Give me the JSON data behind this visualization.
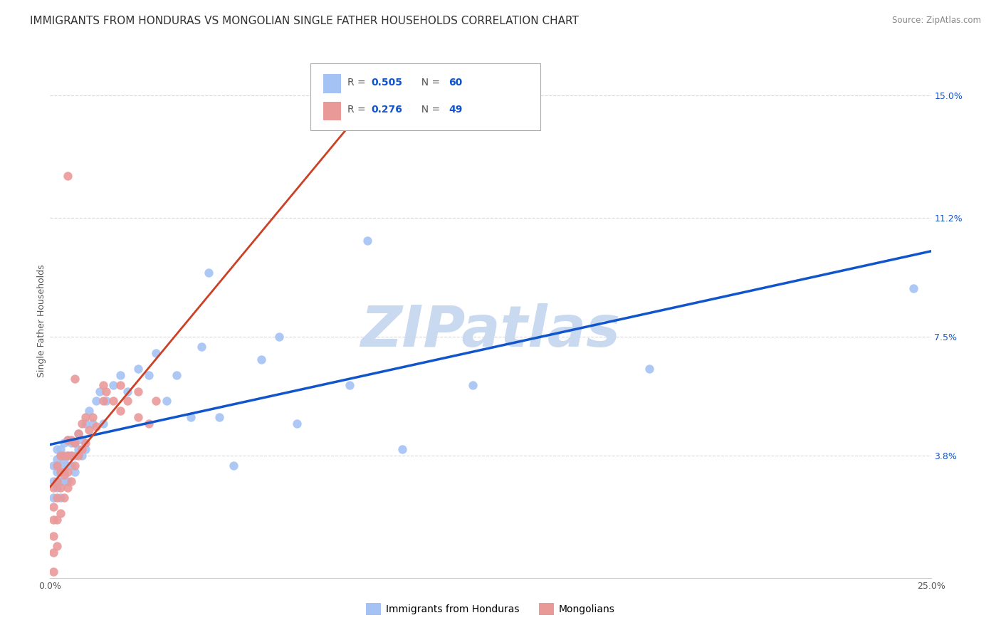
{
  "title": "IMMIGRANTS FROM HONDURAS VS MONGOLIAN SINGLE FATHER HOUSEHOLDS CORRELATION CHART",
  "source": "Source: ZipAtlas.com",
  "ylabel": "Single Father Households",
  "xlim": [
    0.0,
    0.25
  ],
  "ylim": [
    0.0,
    0.16
  ],
  "ytick_positions": [
    0.038,
    0.075,
    0.112,
    0.15
  ],
  "yticklabels": [
    "3.8%",
    "7.5%",
    "11.2%",
    "15.0%"
  ],
  "blue_color": "#a4c2f4",
  "pink_color": "#ea9999",
  "blue_line_color": "#1155cc",
  "pink_line_color": "#cc4125",
  "pink_dash_color": "#e06666",
  "watermark_color": "#c9d9f0",
  "background_color": "#ffffff",
  "grid_color": "#d9d9d9",
  "title_fontsize": 11,
  "axis_label_fontsize": 9,
  "tick_fontsize": 9,
  "right_tick_color": "#1155cc",
  "blue_scatter_x": [
    0.001,
    0.001,
    0.001,
    0.002,
    0.002,
    0.002,
    0.002,
    0.003,
    0.003,
    0.003,
    0.003,
    0.003,
    0.004,
    0.004,
    0.004,
    0.004,
    0.005,
    0.005,
    0.005,
    0.005,
    0.006,
    0.006,
    0.006,
    0.007,
    0.007,
    0.007,
    0.008,
    0.008,
    0.009,
    0.009,
    0.01,
    0.01,
    0.011,
    0.012,
    0.013,
    0.014,
    0.015,
    0.016,
    0.018,
    0.02,
    0.022,
    0.025,
    0.028,
    0.03,
    0.033,
    0.036,
    0.04,
    0.043,
    0.045,
    0.048,
    0.052,
    0.06,
    0.065,
    0.07,
    0.085,
    0.09,
    0.1,
    0.12,
    0.17,
    0.245
  ],
  "blue_scatter_y": [
    0.025,
    0.03,
    0.035,
    0.028,
    0.033,
    0.037,
    0.04,
    0.025,
    0.03,
    0.035,
    0.038,
    0.04,
    0.03,
    0.033,
    0.037,
    0.042,
    0.03,
    0.035,
    0.038,
    0.043,
    0.035,
    0.038,
    0.042,
    0.033,
    0.038,
    0.042,
    0.04,
    0.045,
    0.038,
    0.043,
    0.04,
    0.048,
    0.052,
    0.048,
    0.055,
    0.058,
    0.048,
    0.055,
    0.06,
    0.063,
    0.058,
    0.065,
    0.063,
    0.07,
    0.055,
    0.063,
    0.05,
    0.072,
    0.095,
    0.05,
    0.035,
    0.068,
    0.075,
    0.048,
    0.06,
    0.105,
    0.04,
    0.06,
    0.065,
    0.09
  ],
  "pink_scatter_x": [
    0.001,
    0.001,
    0.001,
    0.001,
    0.001,
    0.001,
    0.002,
    0.002,
    0.002,
    0.002,
    0.002,
    0.003,
    0.003,
    0.003,
    0.003,
    0.004,
    0.004,
    0.004,
    0.005,
    0.005,
    0.005,
    0.005,
    0.006,
    0.006,
    0.006,
    0.007,
    0.007,
    0.008,
    0.008,
    0.009,
    0.009,
    0.01,
    0.01,
    0.011,
    0.012,
    0.013,
    0.015,
    0.016,
    0.018,
    0.02,
    0.022,
    0.025,
    0.028,
    0.03,
    0.015,
    0.02,
    0.025,
    0.005,
    0.007
  ],
  "pink_scatter_y": [
    0.002,
    0.008,
    0.013,
    0.018,
    0.022,
    0.028,
    0.01,
    0.018,
    0.025,
    0.03,
    0.035,
    0.02,
    0.028,
    0.033,
    0.038,
    0.025,
    0.032,
    0.038,
    0.028,
    0.033,
    0.038,
    0.043,
    0.03,
    0.038,
    0.043,
    0.035,
    0.042,
    0.038,
    0.045,
    0.04,
    0.048,
    0.042,
    0.05,
    0.046,
    0.05,
    0.047,
    0.055,
    0.058,
    0.055,
    0.052,
    0.055,
    0.05,
    0.048,
    0.055,
    0.06,
    0.06,
    0.058,
    0.125,
    0.062
  ]
}
